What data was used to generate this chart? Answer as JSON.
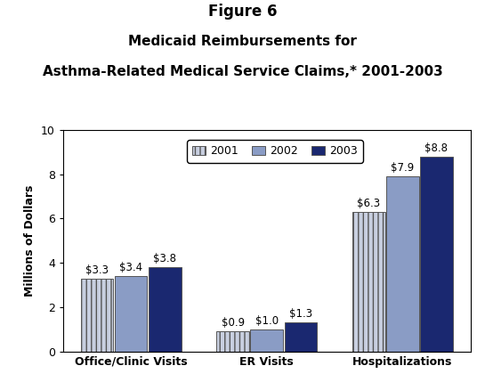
{
  "title_line1": "Figure 6",
  "title_line2": "Medicaid Reimbursements for",
  "title_line3": "Asthma-Related Medical Service Claims,* 2001-2003",
  "categories": [
    "Office/Clinic Visits",
    "ER Visits",
    "Hospitalizations"
  ],
  "years": [
    "2001",
    "2002",
    "2003"
  ],
  "values": {
    "Office/Clinic Visits": [
      3.3,
      3.4,
      3.8
    ],
    "ER Visits": [
      0.9,
      1.0,
      1.3
    ],
    "Hospitalizations": [
      6.3,
      7.9,
      8.8
    ]
  },
  "labels": {
    "Office/Clinic Visits": [
      "$3.3",
      "$3.4",
      "$3.8"
    ],
    "ER Visits": [
      "$0.9",
      "$1.0",
      "$1.3"
    ],
    "Hospitalizations": [
      "$6.3",
      "$7.9",
      "$8.8"
    ]
  },
  "bar_colors": [
    "#c8cfe0",
    "#8a9cc5",
    "#1a2870"
  ],
  "bar_edgecolor": "#555555",
  "hatch_2001": "|||",
  "ylim": [
    0,
    10
  ],
  "yticks": [
    0,
    2,
    4,
    6,
    8,
    10
  ],
  "ylabel": "Millions of Dollars",
  "background_color": "#ffffff",
  "plot_background": "#ffffff",
  "bar_width": 0.24,
  "label_fontsize": 8.5,
  "axis_label_fontsize": 9,
  "tick_fontsize": 9,
  "legend_fontsize": 9,
  "title_fontsize_1": 12,
  "title_fontsize_2": 11
}
